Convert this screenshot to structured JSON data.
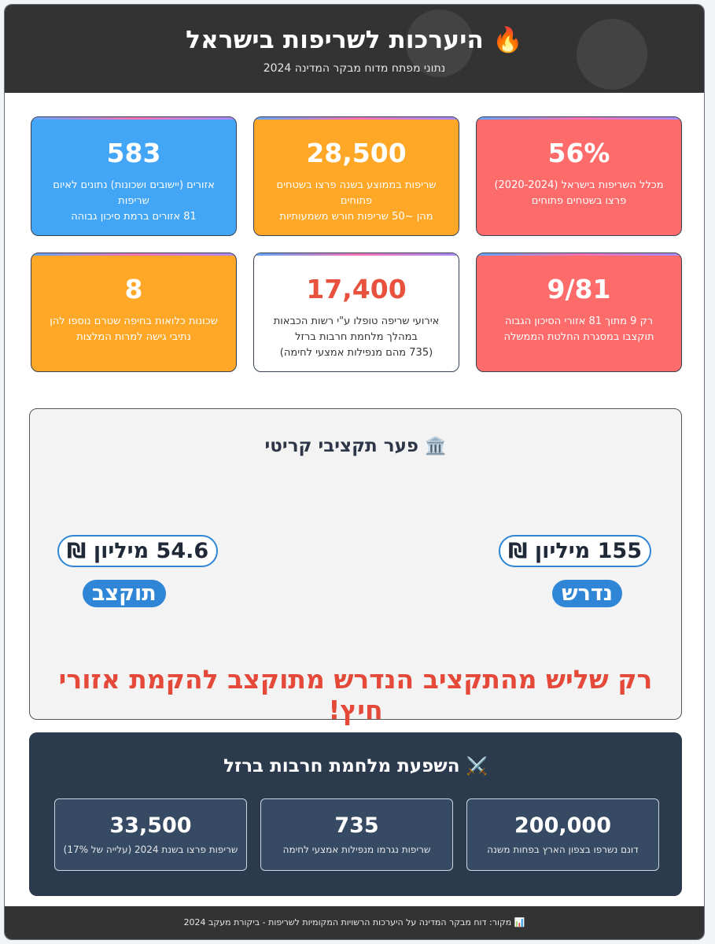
{
  "header": {
    "title": "היערכות לשריפות בישראל",
    "title_icon": "🔥",
    "subtitle": "נתוני מפתח מדוח מבקר המדינה 2024"
  },
  "stats": [
    {
      "value": "56%",
      "desc": "מכלל השריפות בישראל (2020-2024)\nפרצו בשטחים פתוחים",
      "color": "#fe6b6b"
    },
    {
      "value": "28,500",
      "desc": "שריפות בממוצע בשנה פרצו בשטחים פתוחים\nמהן ~50 שריפות חורש משמעותיות",
      "color": "#ffa726"
    },
    {
      "value": "583",
      "desc": "אזורים (יישובים ושכונות) נתונים לאיום שריפות\n81 אזורים ברמת סיכון גבוהה",
      "color": "#42a5f5"
    },
    {
      "value": "9/81",
      "desc": "רק 9 מתוך 81 אזורי הסיכון הגבוה\nתוקצבו במסגרת החלטת הממשלה",
      "color": "#fe6b6b"
    },
    {
      "value": "17,400",
      "desc": "אירועי שריפה טופלו ע\"י רשות הכבאות\nבמהלך מלחמת חרבות ברזל\n(735 מהם מנפילות אמצעי לחימה)",
      "color": "#ffffff"
    },
    {
      "value": "8",
      "desc": "שכונות כלואות בחיפה שטרם נוספו להן\nנתיבי גישה למרות המלצות",
      "color": "#ffa726"
    }
  ],
  "budget": {
    "icon": "🏛️",
    "title": "פער תקציבי קריטי",
    "required_amount": "155 מיליון ₪",
    "required_label": "נדרש",
    "allocated_amount": "54.6 מיליון ₪",
    "allocated_label": "תוקצב",
    "warning": "רק שליש מהתקציב הנדרש מתוקצב להקמת אזורי חיץ!"
  },
  "war": {
    "icon": "⚔️",
    "title": "השפעת מלחמת חרבות ברזל",
    "items": [
      {
        "value": "200,000",
        "desc": "דונם נשרפו בצפון הארץ בפחות משנה"
      },
      {
        "value": "735",
        "desc": "שריפות נגרמו מנפילות אמצעי לחימה"
      },
      {
        "value": "33,500",
        "desc": "שריפות פרצו בשנת 2024 (עלייה של 17%)"
      }
    ]
  },
  "footer": {
    "icon": "📊",
    "text": "מקור: דוח מבקר המדינה על היערכות הרשויות המקומיות לשריפות - ביקורת מעקב 2024"
  }
}
